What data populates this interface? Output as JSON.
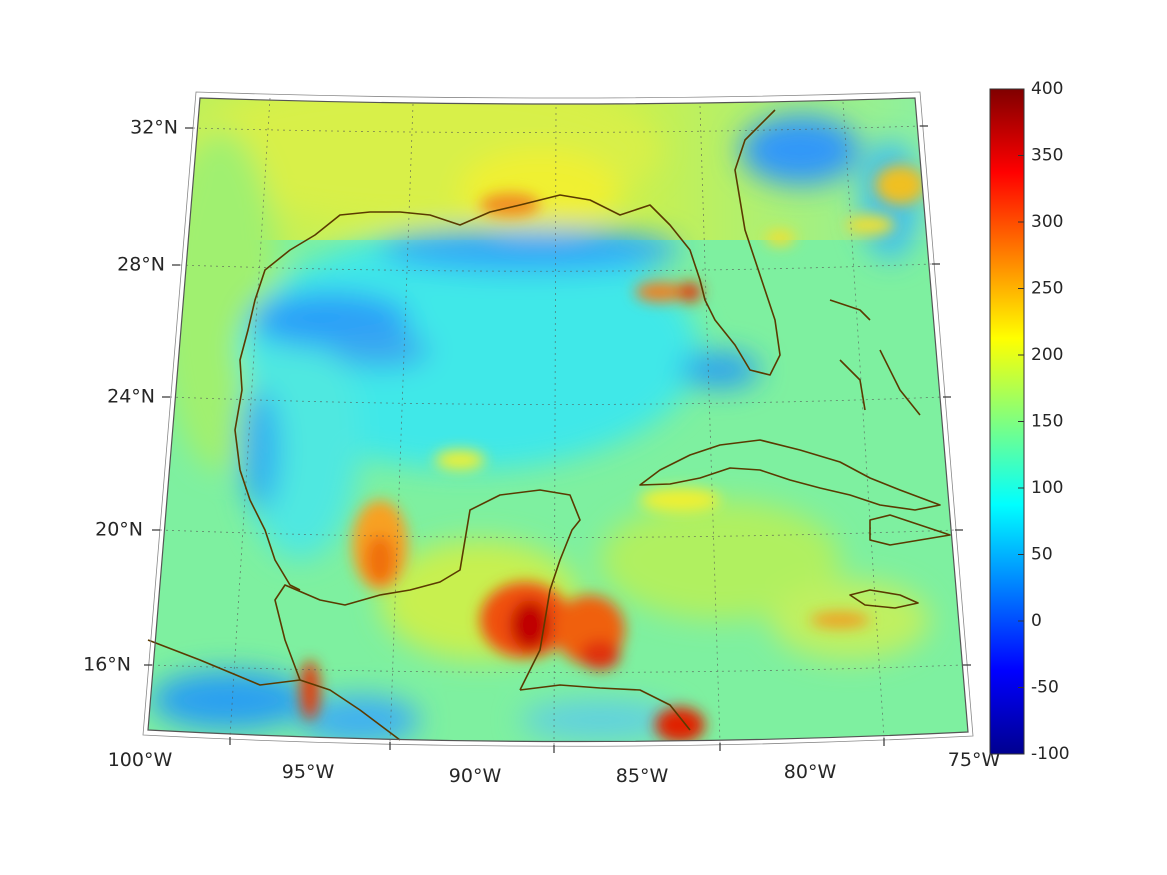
{
  "map": {
    "projection": "lambert-conic",
    "field_colormap": "jet",
    "lon_range": [
      -100,
      -75
    ],
    "lat_range": [
      14,
      33
    ],
    "grid": true,
    "lat_labels": [
      "32°N",
      "28°N",
      "24°N",
      "20°N",
      "16°N"
    ],
    "lon_labels": [
      "100°W",
      "95°W",
      "90°W",
      "85°W",
      "80°W",
      "75°W"
    ],
    "coastline_color": "#5a3a00",
    "colorbar": {
      "min": -100,
      "max": 400,
      "placement": "right",
      "ticks": [
        "400",
        "350",
        "300",
        "250",
        "200",
        "150",
        "100",
        "50",
        "0",
        "-50",
        "-100"
      ]
    }
  }
}
